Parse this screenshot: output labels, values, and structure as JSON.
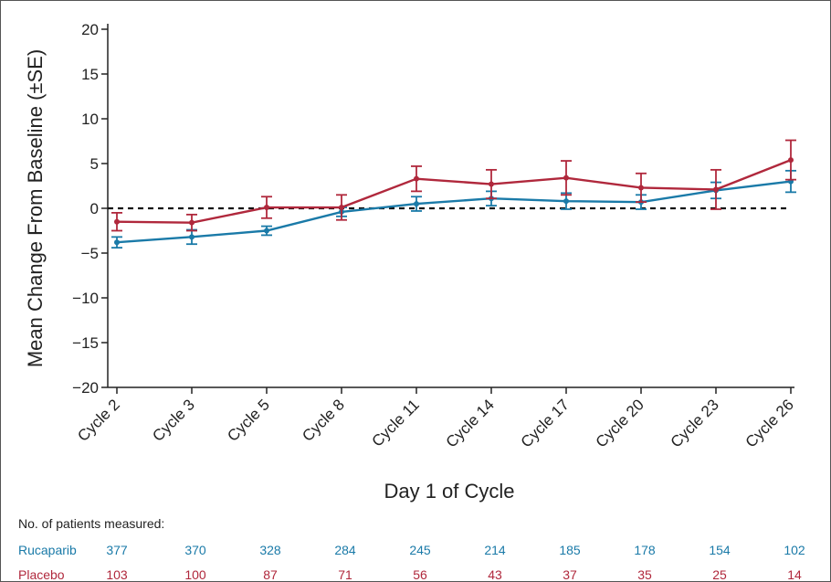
{
  "chart_data": {
    "type": "line",
    "xlabel": "Day 1 of Cycle",
    "ylabel": "Mean Change From Baseline (±SE)",
    "ylim": [
      -20,
      20
    ],
    "yticks": [
      20,
      15,
      10,
      5,
      0,
      -5,
      -10,
      -15,
      -20
    ],
    "ytick_labels": [
      "20",
      "15",
      "10",
      "5",
      "0",
      "−5",
      "−10",
      "−15",
      "−20"
    ],
    "categories": [
      "Cycle 2",
      "Cycle 3",
      "Cycle 5",
      "Cycle 8",
      "Cycle 11",
      "Cycle 14",
      "Cycle 17",
      "Cycle 20",
      "Cycle 23",
      "Cycle 26"
    ],
    "reference_line": 0,
    "series": [
      {
        "name": "Rucaparib",
        "color": "#1a7aa8",
        "values": [
          -3.8,
          -3.2,
          -2.5,
          -0.4,
          0.5,
          1.1,
          0.8,
          0.7,
          2.0,
          3.0
        ],
        "se": [
          0.6,
          0.8,
          0.5,
          0.5,
          0.8,
          0.8,
          0.9,
          0.8,
          0.9,
          1.2
        ]
      },
      {
        "name": "Placebo",
        "color": "#b0283c",
        "values": [
          -1.5,
          -1.6,
          0.1,
          0.1,
          3.3,
          2.7,
          3.4,
          2.3,
          2.1,
          5.4
        ],
        "se": [
          1.0,
          0.9,
          1.2,
          1.4,
          1.4,
          1.6,
          1.9,
          1.6,
          2.2,
          2.2
        ]
      }
    ]
  },
  "patients_table": {
    "title": "No. of patients measured:",
    "rows": [
      {
        "name": "Rucaparib",
        "color": "#1a7aa8",
        "counts": [
          "377",
          "370",
          "328",
          "284",
          "245",
          "214",
          "185",
          "178",
          "154",
          "102"
        ]
      },
      {
        "name": "Placebo",
        "color": "#b0283c",
        "counts": [
          "103",
          "100",
          "87",
          "71",
          "56",
          "43",
          "37",
          "35",
          "25",
          "14"
        ]
      }
    ]
  }
}
